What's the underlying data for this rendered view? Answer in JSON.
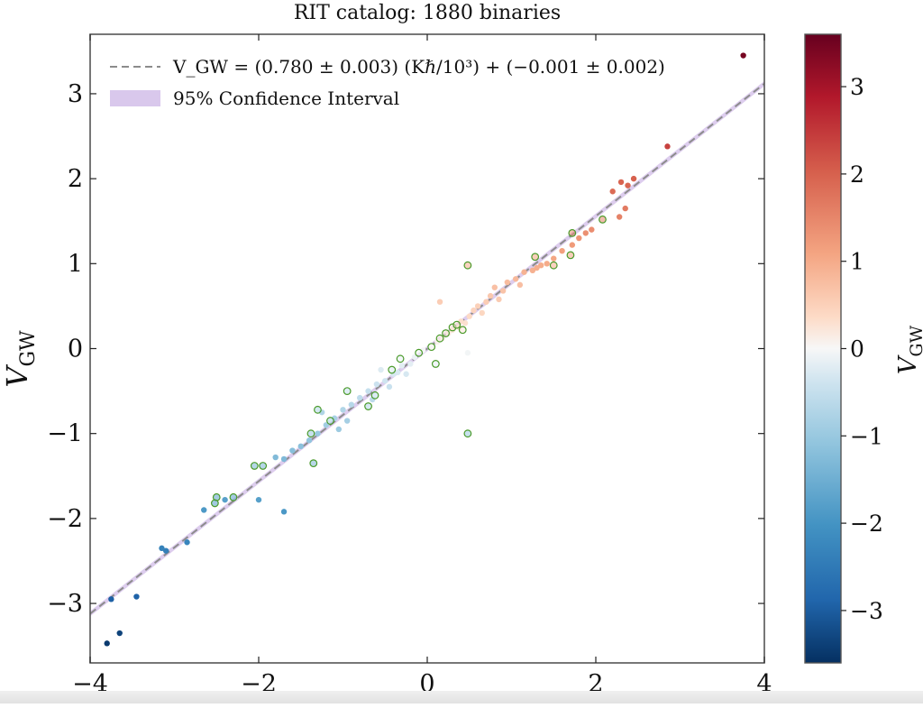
{
  "chart_data": {
    "type": "scatter",
    "title": "RIT catalog: 1880 binaries",
    "xlabel": "",
    "ylabel": "V_GW",
    "xlim": [
      -4,
      4
    ],
    "ylim": [
      -3.7,
      3.7
    ],
    "x_ticks": [
      "−4",
      "−2",
      "0",
      "2",
      "4"
    ],
    "y_ticks": [
      "−3",
      "−2",
      "−1",
      "0",
      "1",
      "2",
      "3"
    ],
    "grid": false,
    "legend_position": "top-left",
    "legend": [
      {
        "kind": "dashed-line",
        "label": "V_GW = (0.780 ± 0.003) (Kℏ/10³) + (−0.001 ± 0.002)",
        "color": "#8c8c8c"
      },
      {
        "kind": "patch",
        "label": "95% Confidence Interval",
        "color": "#d9c8ec"
      }
    ],
    "fit": {
      "slope": 0.78,
      "intercept": -0.001
    },
    "colorbar": {
      "label": "V_GW",
      "min": -3.6,
      "max": 3.6,
      "ticks": [
        "−3",
        "−2",
        "−1",
        "0",
        "1",
        "2",
        "3"
      ],
      "colormap": "RdBu_r"
    },
    "series": [
      {
        "marker": "filled-dot",
        "points": [
          [
            3.75,
            3.45
          ],
          [
            2.85,
            2.38
          ],
          [
            2.45,
            2.0
          ],
          [
            2.38,
            1.92
          ],
          [
            2.3,
            1.96
          ],
          [
            2.2,
            1.85
          ],
          [
            2.35,
            1.65
          ],
          [
            2.28,
            1.55
          ],
          [
            1.95,
            1.4
          ],
          [
            1.88,
            1.36
          ],
          [
            1.8,
            1.3
          ],
          [
            1.72,
            1.22
          ],
          [
            1.6,
            1.15
          ],
          [
            1.5,
            1.06
          ],
          [
            1.42,
            1.0
          ],
          [
            1.35,
            0.98
          ],
          [
            1.25,
            0.92
          ],
          [
            1.15,
            0.9
          ],
          [
            1.05,
            0.82
          ],
          [
            0.95,
            0.78
          ],
          [
            0.9,
            0.68
          ],
          [
            0.85,
            0.58
          ],
          [
            0.75,
            0.62
          ],
          [
            0.7,
            0.55
          ],
          [
            0.6,
            0.5
          ],
          [
            0.55,
            0.45
          ],
          [
            0.5,
            0.38
          ],
          [
            0.45,
            0.3
          ],
          [
            0.38,
            0.25
          ],
          [
            0.3,
            0.22
          ],
          [
            0.25,
            0.18
          ],
          [
            0.18,
            0.12
          ],
          [
            0.12,
            0.08
          ],
          [
            0.05,
            0.03
          ],
          [
            0.4,
            0.32
          ],
          [
            0.65,
            0.42
          ],
          [
            0.8,
            0.72
          ],
          [
            1.1,
            0.75
          ],
          [
            1.3,
            0.95
          ],
          [
            0.15,
            0.55
          ],
          [
            0.48,
            -0.05
          ],
          [
            -0.05,
            -0.02
          ],
          [
            -0.15,
            -0.1
          ],
          [
            -0.2,
            -0.18
          ],
          [
            -0.3,
            -0.2
          ],
          [
            -0.4,
            -0.3
          ],
          [
            -0.5,
            -0.38
          ],
          [
            -0.6,
            -0.42
          ],
          [
            -0.7,
            -0.5
          ],
          [
            -0.8,
            -0.58
          ],
          [
            -0.9,
            -0.66
          ],
          [
            -1.0,
            -0.72
          ],
          [
            -1.1,
            -0.82
          ],
          [
            -1.2,
            -0.9
          ],
          [
            -1.3,
            -1.0
          ],
          [
            -1.4,
            -1.08
          ],
          [
            -1.5,
            -1.15
          ],
          [
            -1.6,
            -1.2
          ],
          [
            -1.7,
            -1.3
          ],
          [
            -1.8,
            -1.28
          ],
          [
            -0.95,
            -0.85
          ],
          [
            -0.65,
            -0.6
          ],
          [
            -0.45,
            -0.45
          ],
          [
            -0.35,
            -0.28
          ],
          [
            -0.25,
            -0.3
          ],
          [
            -1.25,
            -0.75
          ],
          [
            -1.05,
            -0.95
          ],
          [
            -0.55,
            -0.25
          ],
          [
            -2.0,
            -1.78
          ],
          [
            -1.7,
            -1.92
          ],
          [
            -2.4,
            -1.78
          ],
          [
            -2.65,
            -1.9
          ],
          [
            -2.85,
            -2.28
          ],
          [
            -3.1,
            -2.38
          ],
          [
            -3.15,
            -2.35
          ],
          [
            -3.45,
            -2.92
          ],
          [
            -3.75,
            -2.95
          ],
          [
            -3.65,
            -3.35
          ],
          [
            -3.8,
            -3.47
          ]
        ]
      },
      {
        "marker": "open-ring",
        "points": [
          [
            0.48,
            0.98
          ],
          [
            0.48,
            -1.0
          ],
          [
            1.28,
            1.08
          ],
          [
            1.5,
            0.98
          ],
          [
            1.72,
            1.36
          ],
          [
            1.7,
            1.1
          ],
          [
            2.08,
            1.52
          ],
          [
            0.3,
            0.25
          ],
          [
            0.35,
            0.28
          ],
          [
            0.22,
            0.18
          ],
          [
            0.15,
            0.12
          ],
          [
            0.05,
            0.02
          ],
          [
            -0.32,
            -0.12
          ],
          [
            -0.1,
            -0.05
          ],
          [
            0.1,
            -0.18
          ],
          [
            -0.62,
            -0.55
          ],
          [
            -0.7,
            -0.68
          ],
          [
            -0.95,
            -0.5
          ],
          [
            -1.15,
            -0.85
          ],
          [
            -1.3,
            -0.72
          ],
          [
            -1.38,
            -1.0
          ],
          [
            -1.35,
            -1.35
          ],
          [
            -1.95,
            -1.38
          ],
          [
            -2.05,
            -1.38
          ],
          [
            -2.3,
            -1.75
          ],
          [
            -2.5,
            -1.75
          ],
          [
            -2.52,
            -1.82
          ],
          [
            -0.42,
            -0.25
          ],
          [
            0.42,
            0.22
          ]
        ]
      }
    ]
  }
}
